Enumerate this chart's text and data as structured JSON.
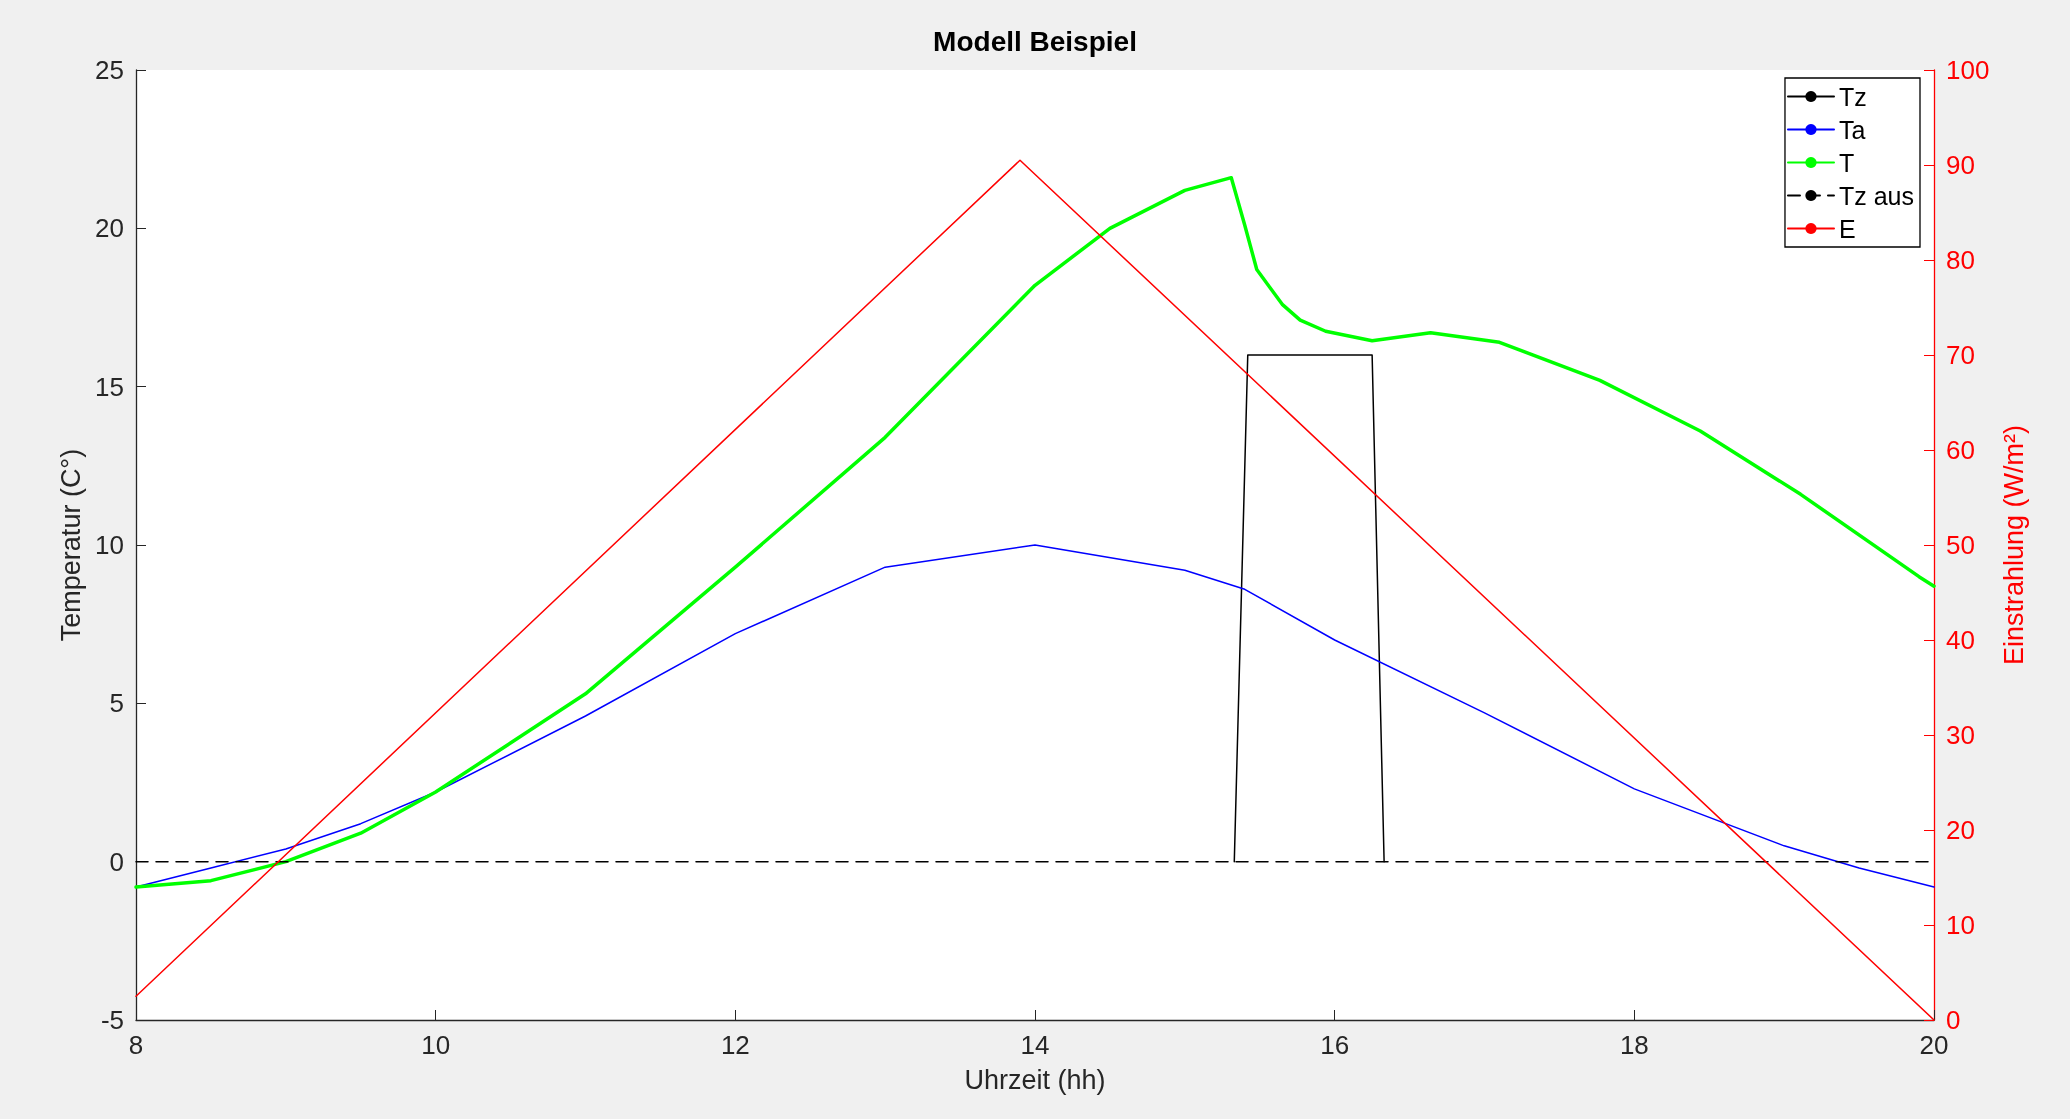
{
  "chart_data": {
    "type": "line",
    "title": "Modell Beispiel",
    "xlabel": "Uhrzeit (hh)",
    "ylabel": "Temperatur (C°)",
    "y2label": "Einstrahlung (W/m²)",
    "xlim": [
      8,
      20
    ],
    "xticks": [
      8,
      10,
      12,
      14,
      16,
      18,
      20
    ],
    "ylim": [
      -5,
      25
    ],
    "yticks": [
      -5,
      0,
      5,
      10,
      15,
      20,
      25
    ],
    "y2lim": [
      0,
      100
    ],
    "y2ticks": [
      0,
      10,
      20,
      30,
      40,
      50,
      60,
      70,
      80,
      90,
      100
    ],
    "grid": false,
    "legend": "top right",
    "marker": "none",
    "series": [
      {
        "name": "Tz",
        "color": "#000000",
        "x": [
          15.33,
          15.42,
          16.25,
          16.33
        ],
        "values": [
          0,
          16,
          16,
          0
        ]
      },
      {
        "name": "Ta",
        "color": "#0000ff",
        "x": [
          8,
          8.5,
          9,
          9.5,
          10,
          11,
          12,
          13,
          14,
          15,
          15.4,
          16,
          17,
          18,
          19,
          19.5,
          20
        ],
        "values": [
          -0.8,
          -0.2,
          0.4,
          1.2,
          2.2,
          4.6,
          7.2,
          9.3,
          10,
          9.2,
          8.6,
          7.0,
          4.7,
          2.3,
          0.5,
          -0.2,
          -0.8
        ]
      },
      {
        "name": "T",
        "color": "#00ff00",
        "x": [
          8,
          8.5,
          9,
          9.5,
          10,
          11,
          12,
          13,
          14,
          14.5,
          15,
          15.31,
          15.4,
          15.48,
          15.65,
          15.77,
          15.94,
          16.25,
          16.64,
          17.1,
          17.77,
          18.44,
          19.11,
          19.9,
          20
        ],
        "values": [
          -0.8,
          -0.6,
          0,
          0.9,
          2.2,
          5.3,
          9.3,
          13.4,
          18.2,
          20.0,
          21.2,
          21.6,
          20.1,
          18.7,
          17.6,
          17.1,
          16.75,
          16.45,
          16.7,
          16.4,
          15.2,
          13.6,
          11.6,
          9.0,
          8.7
        ]
      },
      {
        "name": "Tz aus",
        "color": "#000000",
        "line_style": "dashed",
        "x": [
          8,
          20
        ],
        "values": [
          0,
          0
        ]
      },
      {
        "name": "E",
        "color": "#ff0000",
        "axis": "y2",
        "x": [
          8,
          13.9,
          20
        ],
        "values": [
          2.5,
          90.5,
          0
        ]
      }
    ]
  }
}
